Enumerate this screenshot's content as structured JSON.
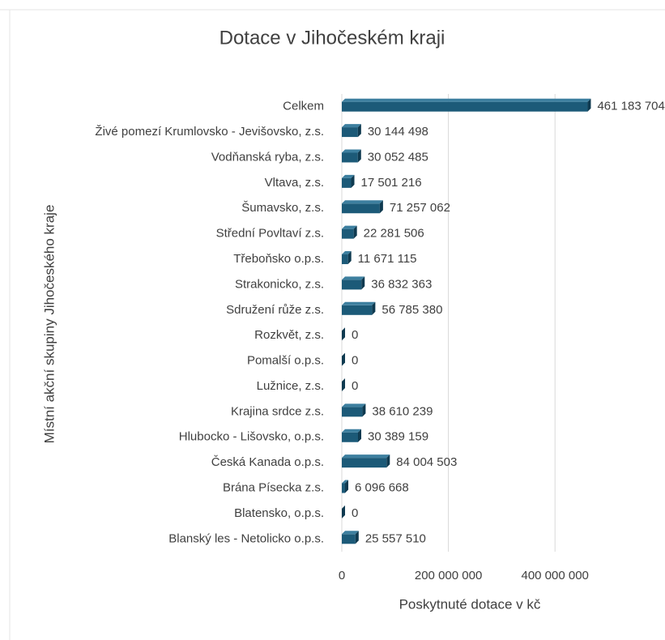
{
  "chart_data": {
    "type": "bar",
    "orientation": "horizontal",
    "title": "Dotace v Jihočeském kraji",
    "xlabel": "Poskytnuté dotace v kč",
    "ylabel": "Místní akční skupiny Jihočeského kraje",
    "categories": [
      "Celkem",
      "Živé pomezí Krumlovsko - Jevišovsko, z.s.",
      "Vodňanská ryba, z.s.",
      "Vltava, z.s.",
      "Šumavsko, z.s.",
      "Střední Povltaví z.s.",
      "Třeboňsko o.p.s.",
      "Strakonicko, z.s.",
      "Sdružení růže z.s.",
      "Rozkvět, z.s.",
      "Pomalší o.p.s.",
      "Lužnice, z.s.",
      "Krajina srdce z.s.",
      "Hlubocko - Lišovsko, o.p.s.",
      "Česká Kanada o.p.s.",
      "Brána Písecka z.s.",
      "Blatensko, o.p.s.",
      "Blanský les - Netolicko o.p.s."
    ],
    "values": [
      461183704,
      30144498,
      30052485,
      17501216,
      71257062,
      22281506,
      11671115,
      36832363,
      56785380,
      0,
      0,
      0,
      38610239,
      30389159,
      84004503,
      6096668,
      0,
      25557510
    ],
    "value_labels": [
      "461 183 704",
      "30 144 498",
      "30 052 485",
      "17 501 216",
      "71 257 062",
      "22 281 506",
      "11 671 115",
      "36 832 363",
      "56 785 380",
      "0",
      "0",
      "0",
      "38 610 239",
      "30 389 159",
      "84 004 503",
      "6 096 668",
      "0",
      "25 557 510"
    ],
    "color": "#1c5a78",
    "xlim": [
      0,
      500000000
    ],
    "xticks": [
      0,
      {
        "value": 200000000,
        "label": "200 000 000"
      },
      {
        "value": 400000000,
        "label": "400 000 000"
      }
    ],
    "grid": true
  }
}
